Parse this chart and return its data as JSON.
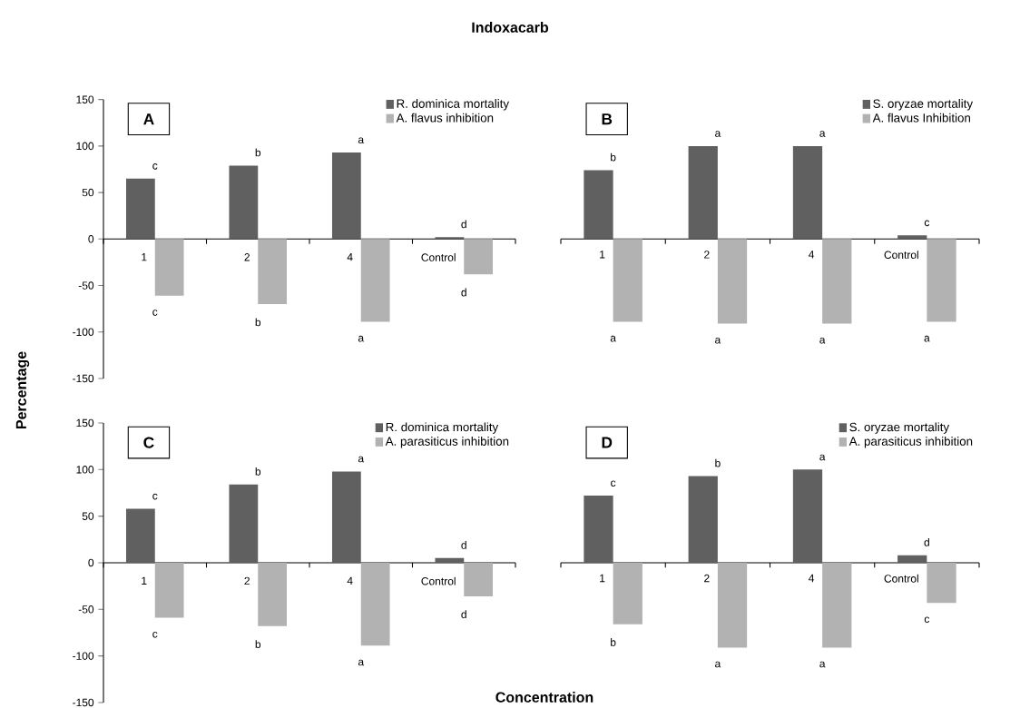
{
  "chart_data": [
    {
      "type": "bar",
      "title": "Indoxacarb",
      "ylabel": "Percentage",
      "annotations": [
        "A"
      ],
      "categories": [
        "1",
        "2",
        "4",
        "Control"
      ],
      "series": [
        {
          "name": "R. dominica mortality",
          "color": "#606060",
          "values": [
            65,
            79,
            93,
            2
          ],
          "value_labels": [
            "c",
            "b",
            "a",
            "d"
          ]
        },
        {
          "name": "A. flavus inhibition",
          "color": "#b2b2b2",
          "values": [
            -61,
            -70,
            -89,
            -38
          ],
          "value_labels": [
            "c",
            "b",
            "a",
            "d"
          ]
        }
      ],
      "ylim": [
        -150,
        150
      ],
      "yticks": [
        -150,
        -100,
        -50,
        0,
        50,
        100,
        150
      ],
      "legend": "top right"
    },
    {
      "type": "bar",
      "annotations": [
        "B"
      ],
      "categories": [
        "1",
        "2",
        "4",
        "Control"
      ],
      "series": [
        {
          "name": "S. oryzae mortality",
          "color": "#606060",
          "values": [
            74,
            100,
            100,
            4
          ],
          "value_labels": [
            "b",
            "a",
            "a",
            "c"
          ]
        },
        {
          "name": "A. flavus Inhibition",
          "color": "#b2b2b2",
          "values": [
            -89,
            -91,
            -91,
            -89
          ],
          "value_labels": [
            "a",
            "a",
            "a",
            "a"
          ]
        }
      ],
      "ylim": [
        -150,
        150
      ],
      "tick_labels": "x",
      "legend": "top right"
    },
    {
      "type": "bar",
      "xlabel": "Concentration",
      "annotations": [
        "C"
      ],
      "categories": [
        "1",
        "2",
        "4",
        "Control"
      ],
      "series": [
        {
          "name": "R. dominica mortality",
          "color": "#606060",
          "values": [
            58,
            84,
            98,
            5
          ],
          "value_labels": [
            "c",
            "b",
            "a",
            "d"
          ]
        },
        {
          "name": "A. parasiticus inhibition",
          "color": "#b2b2b2",
          "values": [
            -59,
            -68,
            -89,
            -36
          ],
          "value_labels": [
            "c",
            "b",
            "a",
            "d"
          ]
        }
      ],
      "ylim": [
        -150,
        150
      ],
      "yticks": [
        -150,
        -100,
        -50,
        0,
        50,
        100,
        150
      ],
      "legend": "top right"
    },
    {
      "type": "bar",
      "annotations": [
        "D"
      ],
      "categories": [
        "1",
        "2",
        "4",
        "Control"
      ],
      "series": [
        {
          "name": "S. oryzae mortality",
          "color": "#606060",
          "values": [
            72,
            93,
            100,
            8
          ],
          "value_labels": [
            "c",
            "b",
            "a",
            "d"
          ]
        },
        {
          "name": "A. parasiticus inhibition",
          "color": "#b2b2b2",
          "values": [
            -66,
            -91,
            -91,
            -43
          ],
          "value_labels": [
            "b",
            "a",
            "a",
            "c"
          ]
        }
      ],
      "ylim": [
        -150,
        150
      ],
      "tick_labels": "x",
      "legend": "top right"
    }
  ]
}
